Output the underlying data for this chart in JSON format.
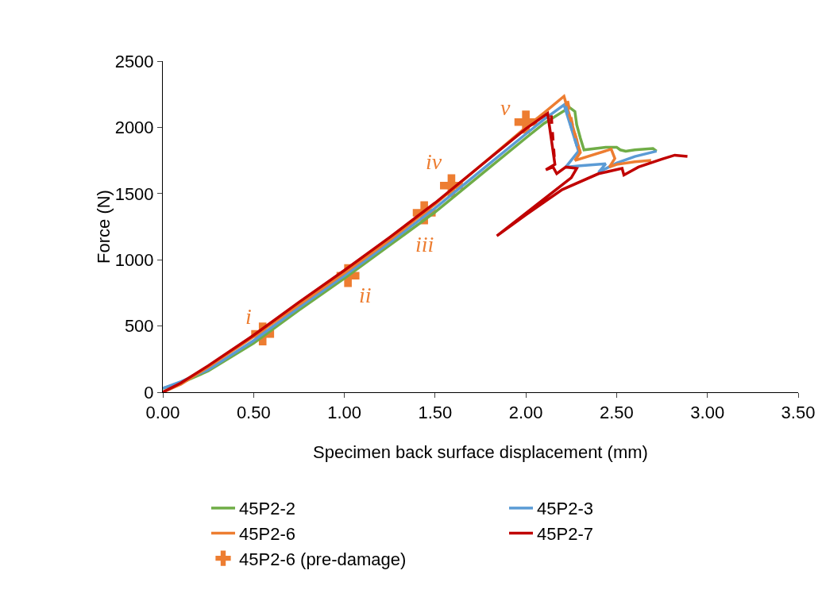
{
  "chart_data": {
    "type": "line",
    "xlabel": "Specimen back surface displacement (mm)",
    "ylabel": "Force (N)",
    "xlim": [
      0,
      3.5
    ],
    "xticks": [
      {
        "value": 0,
        "label": "0.00"
      },
      {
        "value": 0.5,
        "label": "0.50"
      },
      {
        "value": 1,
        "label": "1.00"
      },
      {
        "value": 1.5,
        "label": "1.50"
      },
      {
        "value": 2,
        "label": "2.00"
      },
      {
        "value": 2.5,
        "label": "2.50"
      },
      {
        "value": 3,
        "label": "3.00"
      },
      {
        "value": 3.5,
        "label": "3.50"
      }
    ],
    "ylim": [
      0,
      2500
    ],
    "yticks": [
      0,
      500,
      1000,
      1500,
      2000,
      2500
    ],
    "grid": false,
    "legend": "bottom",
    "marker": "none",
    "line_style": "solid",
    "series": [
      {
        "name": "45P2-2",
        "color": "#70ad47",
        "x": [
          0,
          0.1,
          0.25,
          0.5,
          0.75,
          1.0,
          1.25,
          1.5,
          1.75,
          2.0,
          2.1,
          2.24,
          2.27,
          2.28,
          2.3,
          2.32,
          2.44,
          2.5,
          2.52,
          2.55,
          2.6,
          2.7,
          2.72
        ],
        "values": [
          30,
          70,
          160,
          370,
          620,
          860,
          1110,
          1360,
          1640,
          1920,
          2030,
          2150,
          2120,
          2020,
          1920,
          1830,
          1850,
          1850,
          1830,
          1820,
          1830,
          1840,
          1820
        ]
      },
      {
        "name": "45P2-3",
        "color": "#5b9bd5",
        "x": [
          0,
          0.1,
          0.25,
          0.5,
          0.75,
          1.0,
          1.25,
          1.5,
          1.75,
          2.0,
          2.1,
          2.21,
          2.29,
          2.22,
          2.3,
          2.44,
          2.4,
          2.5,
          2.6,
          2.72
        ],
        "values": [
          30,
          80,
          170,
          390,
          640,
          880,
          1130,
          1390,
          1670,
          1950,
          2060,
          2170,
          1820,
          1700,
          1710,
          1725,
          1660,
          1730,
          1780,
          1820
        ]
      },
      {
        "name": "45P2-6",
        "color": "#ed7d31",
        "x": [
          0,
          0.1,
          0.25,
          0.5,
          0.75,
          1.0,
          1.25,
          1.5,
          1.75,
          2.0,
          2.1,
          2.21,
          2.3,
          2.27,
          2.47,
          2.49,
          2.46,
          2.5,
          2.6,
          2.69
        ],
        "values": [
          0,
          60,
          190,
          420,
          660,
          900,
          1150,
          1420,
          1710,
          2000,
          2110,
          2235,
          1810,
          1750,
          1835,
          1765,
          1700,
          1720,
          1740,
          1750
        ]
      },
      {
        "name": "45P2-7",
        "color": "#c00000",
        "x": [
          0,
          0.1,
          0.25,
          0.5,
          0.75,
          1.0,
          1.25,
          1.5,
          1.75,
          2.0,
          2.12,
          2.16,
          2.11,
          2.15,
          2.17,
          2.22,
          2.28,
          2.25,
          1.84,
          2.0,
          2.2,
          2.4,
          2.53,
          2.54,
          2.62,
          2.75,
          2.82,
          2.89
        ],
        "values": [
          0,
          70,
          200,
          430,
          680,
          920,
          1170,
          1430,
          1710,
          1990,
          2105,
          1720,
          1680,
          1700,
          1650,
          1700,
          1690,
          1620,
          1180,
          1340,
          1530,
          1650,
          1690,
          1640,
          1700,
          1760,
          1790,
          1780
        ]
      },
      {
        "color": "#ed7d31",
        "line_style": "dashed",
        "x": [
          2.23,
          2.26,
          2.3
        ],
        "values": [
          2200,
          2000,
          1810
        ]
      },
      {
        "color": "#5b9bd5",
        "line_style": "dashed",
        "x": [
          2.22,
          2.25,
          2.29
        ],
        "values": [
          2160,
          2000,
          1820
        ]
      },
      {
        "color": "#c00000",
        "line_style": "dashed",
        "x": [
          2.14,
          2.15,
          2.16
        ],
        "values": [
          2090,
          1900,
          1720
        ]
      },
      {
        "name": "45P2-6 (pre-damage)",
        "type": "scatter",
        "marker": "cross",
        "color": "#ed7d31",
        "x": [
          0.55,
          1.02,
          1.44,
          1.59,
          2.0
        ],
        "values": [
          440,
          880,
          1355,
          1560,
          2040
        ]
      }
    ],
    "annotations": [
      {
        "text": "i",
        "x": 0.55,
        "y": 440
      },
      {
        "text": "ii",
        "x": 1.02,
        "y": 880
      },
      {
        "text": "iii",
        "x": 1.44,
        "y": 1355
      },
      {
        "text": "iv",
        "x": 1.59,
        "y": 1560
      },
      {
        "text": "v",
        "x": 2.0,
        "y": 2040
      }
    ]
  }
}
